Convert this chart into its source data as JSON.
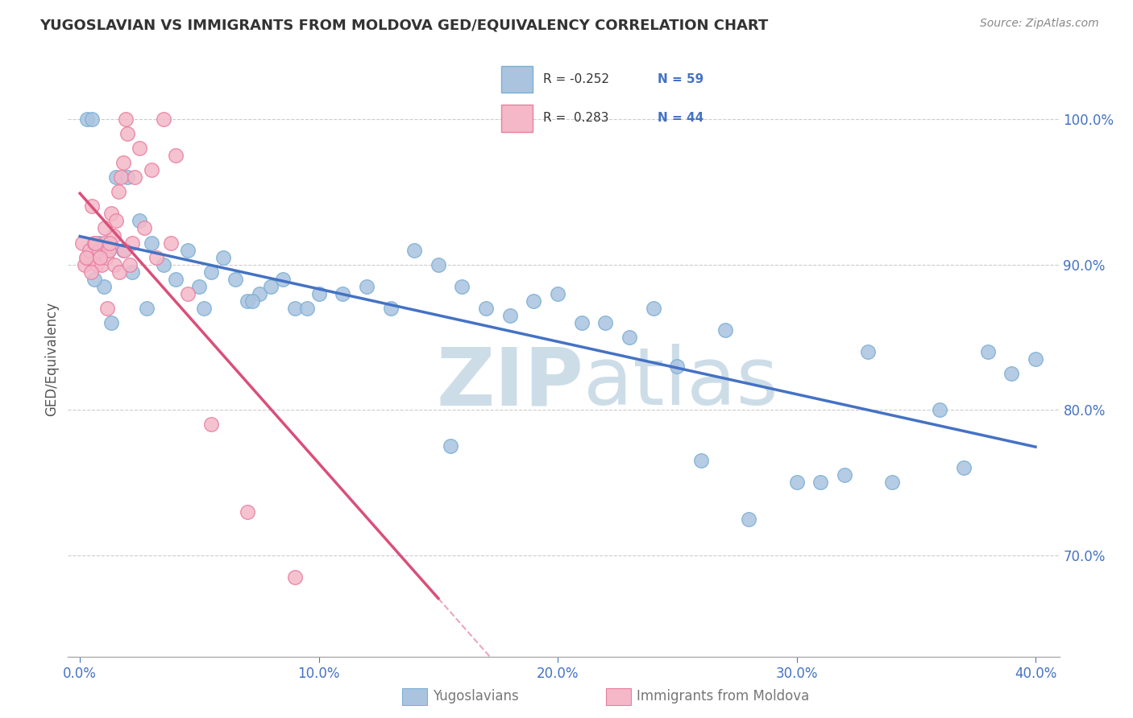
{
  "title": "YUGOSLAVIAN VS IMMIGRANTS FROM MOLDOVA GED/EQUIVALENCY CORRELATION CHART",
  "source_text": "Source: ZipAtlas.com",
  "ylabel": "GED/Equivalency",
  "xlim": [
    -0.5,
    41.0
  ],
  "ylim": [
    63.0,
    104.0
  ],
  "xtick_vals": [
    0.0,
    10.0,
    20.0,
    30.0,
    40.0
  ],
  "ytick_vals": [
    70.0,
    80.0,
    90.0,
    100.0
  ],
  "legend_R_blue": "-0.252",
  "legend_N_blue": "59",
  "legend_R_pink": "0.283",
  "legend_N_pink": "44",
  "blue_face": "#aac4e0",
  "blue_edge": "#7bafd4",
  "pink_face": "#f4b8c8",
  "pink_edge": "#e87fa0",
  "blue_line": "#4472c4",
  "pink_line": "#d94f7a",
  "watermark_color": "#cddde8",
  "grid_color": "#cccccc",
  "tick_color": "#4472c4",
  "title_color": "#333333",
  "source_color": "#888888",
  "blue_x": [
    0.3,
    0.5,
    1.5,
    2.0,
    2.5,
    0.8,
    1.0,
    1.2,
    1.8,
    2.2,
    3.0,
    3.5,
    4.0,
    4.5,
    5.0,
    5.5,
    6.0,
    6.5,
    7.0,
    7.5,
    8.0,
    8.5,
    9.0,
    10.0,
    11.0,
    12.0,
    13.0,
    14.0,
    15.0,
    16.0,
    17.0,
    18.0,
    19.0,
    20.0,
    21.0,
    22.0,
    23.0,
    24.0,
    25.0,
    27.0,
    28.0,
    30.0,
    32.0,
    33.0,
    34.0,
    36.0,
    37.0,
    38.0,
    39.0,
    40.0,
    0.6,
    1.3,
    2.8,
    5.2,
    7.2,
    9.5,
    15.5,
    26.0,
    31.0
  ],
  "blue_y": [
    100.0,
    100.0,
    96.0,
    96.0,
    93.0,
    91.5,
    88.5,
    91.0,
    91.0,
    89.5,
    91.5,
    90.0,
    89.0,
    91.0,
    88.5,
    89.5,
    90.5,
    89.0,
    87.5,
    88.0,
    88.5,
    89.0,
    87.0,
    88.0,
    88.0,
    88.5,
    87.0,
    91.0,
    90.0,
    88.5,
    87.0,
    86.5,
    87.5,
    88.0,
    86.0,
    86.0,
    85.0,
    87.0,
    83.0,
    85.5,
    72.5,
    75.0,
    75.5,
    84.0,
    75.0,
    80.0,
    76.0,
    84.0,
    82.5,
    83.5,
    89.0,
    86.0,
    87.0,
    87.0,
    87.5,
    87.0,
    77.5,
    76.5,
    75.0
  ],
  "pink_x": [
    0.1,
    0.2,
    0.3,
    0.4,
    0.5,
    0.6,
    0.7,
    0.8,
    0.9,
    1.0,
    1.1,
    1.2,
    1.3,
    1.4,
    1.5,
    1.6,
    1.7,
    1.8,
    1.9,
    2.0,
    2.2,
    2.5,
    3.0,
    3.5,
    4.0,
    0.25,
    0.45,
    0.65,
    0.85,
    1.05,
    1.25,
    1.45,
    1.65,
    1.85,
    2.1,
    2.7,
    3.2,
    3.8,
    4.5,
    5.5,
    7.0,
    9.0,
    1.15,
    2.3
  ],
  "pink_y": [
    91.5,
    90.0,
    90.5,
    91.0,
    94.0,
    91.5,
    90.0,
    91.0,
    90.0,
    91.5,
    90.5,
    91.0,
    93.5,
    92.0,
    93.0,
    95.0,
    96.0,
    97.0,
    100.0,
    99.0,
    91.5,
    98.0,
    96.5,
    100.0,
    97.5,
    90.5,
    89.5,
    91.5,
    90.5,
    92.5,
    91.5,
    90.0,
    89.5,
    91.0,
    90.0,
    92.5,
    90.5,
    91.5,
    88.0,
    79.0,
    73.0,
    68.5,
    87.0,
    96.0
  ]
}
